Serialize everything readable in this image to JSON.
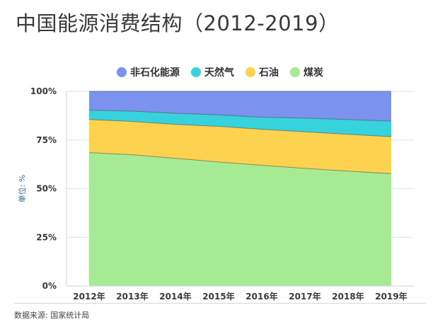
{
  "title": "中国能源消费结构（2012-2019）",
  "source": "数据来源: 国家统计局",
  "chart_data": {
    "type": "area",
    "stacked": true,
    "percent": true,
    "xlabel": "",
    "ylabel": "单位: %",
    "ylim": [
      0,
      100
    ],
    "yticks": [
      "0%",
      "25%",
      "50%",
      "75%",
      "100%"
    ],
    "categories": [
      "2012年",
      "2013年",
      "2014年",
      "2015年",
      "2016年",
      "2017年",
      "2018年",
      "2019年"
    ],
    "legend_position": "top",
    "series": [
      {
        "name": "煤炭",
        "color": "#a6eb93",
        "values": [
          68.5,
          67.4,
          65.6,
          63.7,
          62.0,
          60.4,
          59.0,
          57.7
        ]
      },
      {
        "name": "石油",
        "color": "#fdd24f",
        "values": [
          17.0,
          17.1,
          17.4,
          18.3,
          18.5,
          18.8,
          18.9,
          19.0
        ]
      },
      {
        "name": "天然气",
        "color": "#37d3dc",
        "values": [
          4.8,
          5.3,
          5.7,
          5.9,
          6.2,
          7.0,
          7.6,
          8.0
        ]
      },
      {
        "name": "非石化能源",
        "color": "#7b93ee",
        "values": [
          9.7,
          10.2,
          11.3,
          12.1,
          13.3,
          13.8,
          14.5,
          15.3
        ]
      }
    ],
    "legend_order": [
      "非石化能源",
      "天然气",
      "石油",
      "煤炭"
    ],
    "grid": true
  }
}
